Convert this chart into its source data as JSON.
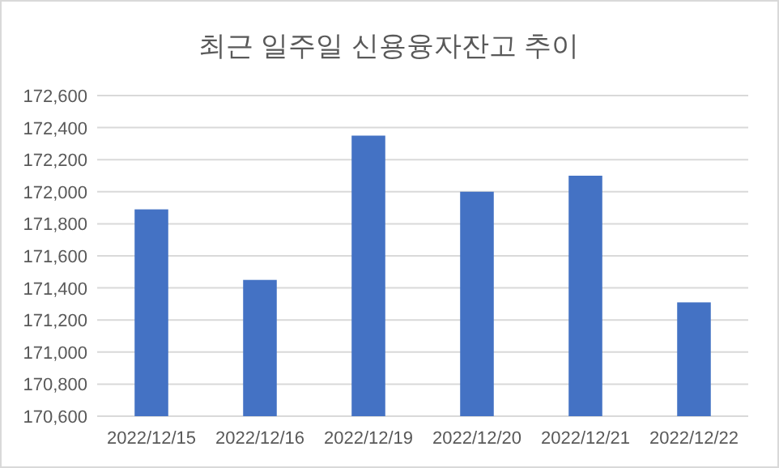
{
  "chart_data": {
    "type": "bar",
    "title": "최근 일주일 신용융자잔고 추이",
    "categories": [
      "2022/12/15",
      "2022/12/16",
      "2022/12/19",
      "2022/12/20",
      "2022/12/21",
      "2022/12/22"
    ],
    "values": [
      171890,
      171450,
      172350,
      172000,
      172100,
      171310
    ],
    "color": "#4472c4",
    "ylim": [
      170600,
      172600
    ],
    "yticks": [
      {
        "value": 170600,
        "label": "170,600"
      },
      {
        "value": 170800,
        "label": "170,800"
      },
      {
        "value": 171000,
        "label": "171,000"
      },
      {
        "value": 171200,
        "label": "171,200"
      },
      {
        "value": 171400,
        "label": "171,400"
      },
      {
        "value": 171600,
        "label": "171,600"
      },
      {
        "value": 171800,
        "label": "171,800"
      },
      {
        "value": 172000,
        "label": "172,000"
      },
      {
        "value": 172200,
        "label": "172,200"
      },
      {
        "value": 172400,
        "label": "172,400"
      },
      {
        "value": 172600,
        "label": "172,600"
      }
    ],
    "grid": "y"
  }
}
